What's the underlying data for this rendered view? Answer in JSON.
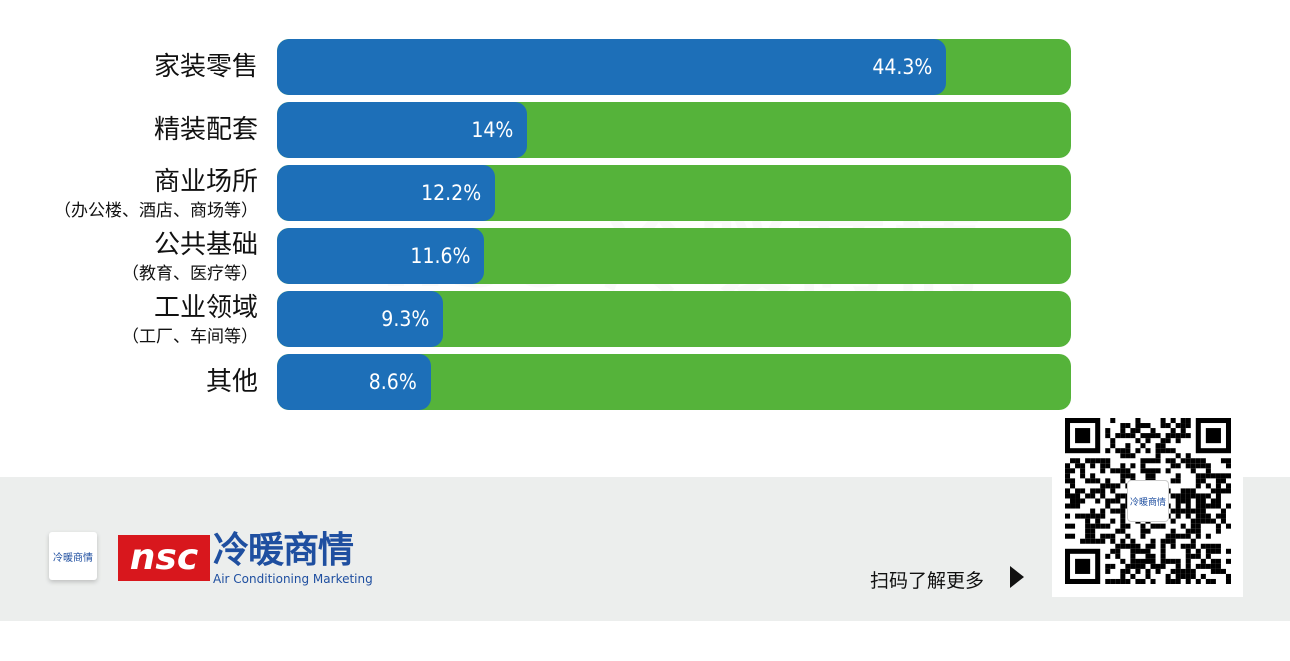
{
  "chart_data": {
    "type": "bar",
    "orientation": "horizontal",
    "categories": [
      {
        "label": "家装零售",
        "sub": ""
      },
      {
        "label": "精装配套",
        "sub": ""
      },
      {
        "label": "商业场所",
        "sub": "（办公楼、酒店、商场等）"
      },
      {
        "label": "公共基础",
        "sub": "（教育、医疗等）"
      },
      {
        "label": "工业领域",
        "sub": "（工厂、车间等）"
      },
      {
        "label": "其他",
        "sub": ""
      }
    ],
    "values": [
      44.3,
      14,
      12.2,
      11.6,
      9.3,
      8.6
    ],
    "value_labels": [
      "44.3%",
      "14%",
      "12.2%",
      "11.6%",
      "9.3%",
      "8.6%"
    ],
    "xlim": [
      0,
      44.4
    ],
    "grid": false,
    "colors": {
      "value": "#1d6fb8",
      "track": "#55b33a"
    }
  },
  "watermark": "nsc 冷暖商情",
  "footer": {
    "badge_text": "冷暖商情",
    "logo_mark": "nsc",
    "logo_cn": "冷暖商情",
    "logo_en": "Air Conditioning Marketing",
    "scan_text": "扫码了解更多",
    "qr_logo_text": "冷暖商情",
    "brand_red": "#d8171d",
    "brand_blue": "#1f4fa0",
    "background": "#eceeed"
  }
}
